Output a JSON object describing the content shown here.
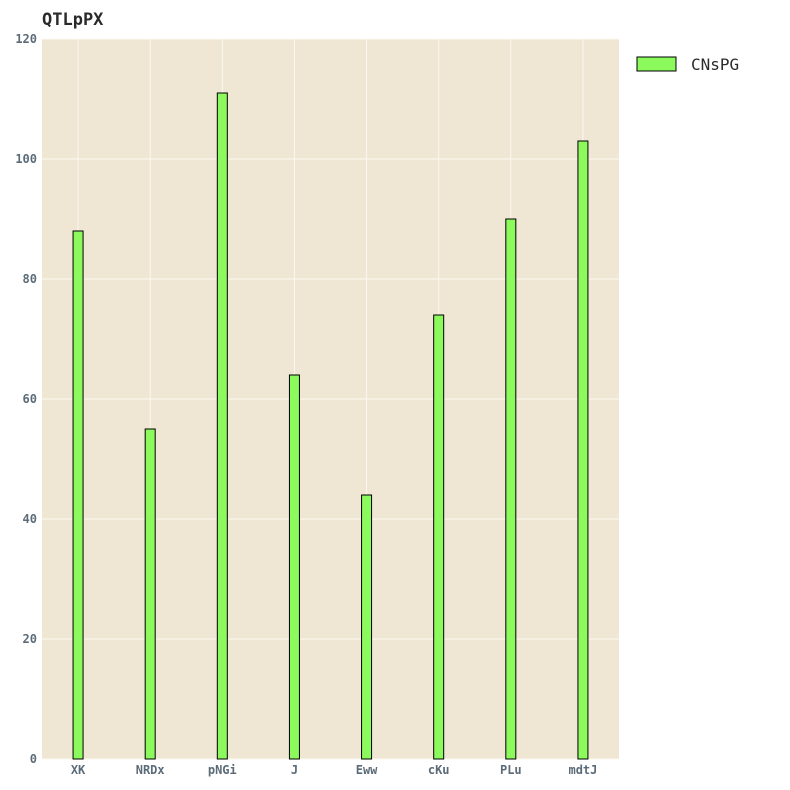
{
  "chart_data": {
    "type": "bar",
    "title": "QTLpPX",
    "xlabel": "",
    "ylabel": "",
    "categories": [
      "XK",
      "NRDx",
      "pNGi",
      "J",
      "Eww",
      "cKu",
      "PLu",
      "mdtJ"
    ],
    "series": [
      {
        "name": "CNsPG",
        "values": [
          88,
          55,
          111,
          64,
          44,
          74,
          90,
          103
        ]
      }
    ],
    "ylim": [
      0,
      120
    ],
    "yticks": [
      0,
      20,
      40,
      60,
      80,
      100,
      120
    ],
    "grid": true,
    "legend_position": "top-right",
    "colors": {
      "plot_background": "#efe7d4",
      "bar_fill": "#8cf95c",
      "bar_stroke": "#000000",
      "grid": "#fbf8f0",
      "tick_text": "#5b6b78"
    }
  }
}
